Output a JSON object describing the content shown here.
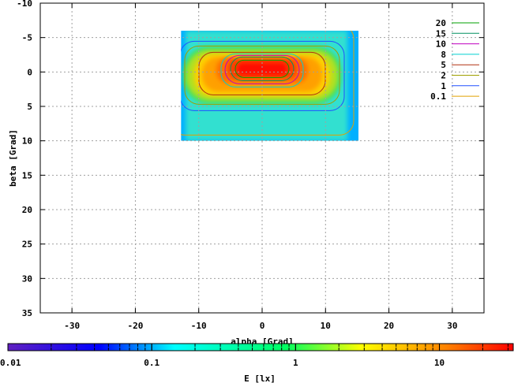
{
  "chart_data": {
    "type": "heatmap",
    "xlabel": "alpha [Grad]",
    "ylabel": "beta [Grad]",
    "xlim": [
      -35,
      35
    ],
    "ylim": [
      -10,
      35
    ],
    "y_inverted": true,
    "x_ticks": [
      -30,
      -20,
      -10,
      0,
      10,
      20,
      30
    ],
    "y_ticks": [
      -10,
      -5,
      0,
      5,
      10,
      15,
      20,
      25,
      30,
      35
    ],
    "grid": true,
    "data_extent": {
      "x": [
        -12.8,
        15.2
      ],
      "y": [
        -6,
        10
      ]
    },
    "peak_value": 25,
    "peak_location": [
      0,
      0
    ],
    "contour_levels": [
      {
        "label": "20",
        "value": 20,
        "color": "#00a000"
      },
      {
        "label": "15",
        "value": 15,
        "color": "#009060"
      },
      {
        "label": "10",
        "value": 10,
        "color": "#c000c0"
      },
      {
        "label": "8",
        "value": 8,
        "color": "#00d0d0"
      },
      {
        "label": "5",
        "value": 5,
        "color": "#b03010"
      },
      {
        "label": "2",
        "value": 2,
        "color": "#a0a000"
      },
      {
        "label": "1",
        "value": 1,
        "color": "#2050ff"
      },
      {
        "label": "0.1",
        "value": 0.1,
        "color": "#e0a000"
      }
    ],
    "legend_position": "top-right",
    "colorbar": {
      "label": "E [lx]",
      "scale": "log",
      "range": [
        0.01,
        33
      ],
      "ticks": [
        {
          "label": "0.01",
          "value": 0.01
        },
        {
          "label": "0.1",
          "value": 0.1
        },
        {
          "label": "1",
          "value": 1
        },
        {
          "label": "10",
          "value": 10
        }
      ],
      "colors": [
        "#6020c0",
        "#0000ff",
        "#00ffff",
        "#00ff40",
        "#ffff00",
        "#ff8000",
        "#ff0000"
      ]
    }
  }
}
